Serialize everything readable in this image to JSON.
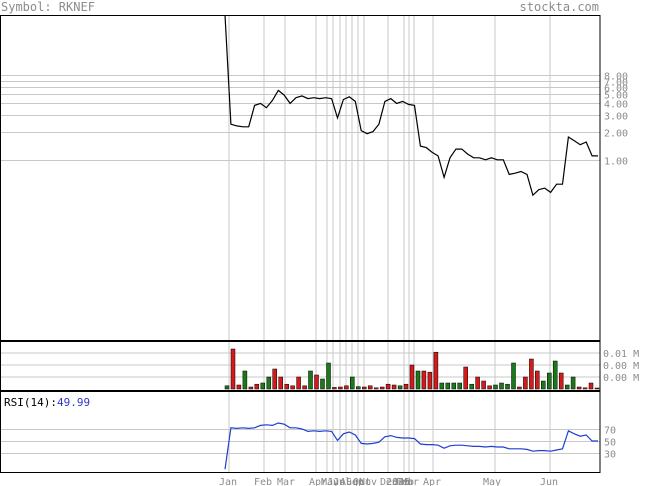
{
  "header": {
    "symbol_label": "Symbol: RKNEF",
    "site": "stockta.com"
  },
  "colors": {
    "label": "#8c8c8c",
    "grid": "#c8c8c8",
    "frame": "#000000",
    "price_line": "#000000",
    "rsi_line": "#1f3fd0",
    "rsi_value": "#2b36c9",
    "volume_up": "#1a7a1a",
    "volume_down": "#d41a1a"
  },
  "chart_data": [
    {
      "type": "line",
      "panel": "price",
      "scale": "log",
      "yticks": [
        8.0,
        7.0,
        6.0,
        5.0,
        4.0,
        3.0,
        2.0,
        1.0
      ],
      "ytick_labels": [
        "8.00",
        "7.00",
        "6.00",
        "5.00",
        "4.00",
        "3.00",
        "2.00",
        "1.00"
      ],
      "series": [
        {
          "values": [
            60,
            2.4,
            2.3,
            2.25,
            2.25,
            3.8,
            4.0,
            3.6,
            4.3,
            5.5,
            4.9,
            4.0,
            4.6,
            4.8,
            4.5,
            4.6,
            4.5,
            4.6,
            4.5,
            2.8,
            4.4,
            4.7,
            4.2,
            2.05,
            1.9,
            2.0,
            2.4,
            4.2,
            4.5,
            4.0,
            4.2,
            3.9,
            3.8,
            1.4,
            1.35,
            1.2,
            1.1,
            0.65,
            1.05,
            1.3,
            1.3,
            1.15,
            1.05,
            1.05,
            1.0,
            1.05,
            1.0,
            1.0,
            0.7,
            0.72,
            0.75,
            0.7,
            0.42,
            0.48,
            0.5,
            0.45,
            0.55,
            0.55,
            1.75,
            1.6,
            1.45,
            1.55,
            1.1,
            1.1
          ]
        }
      ]
    },
    {
      "type": "bar",
      "panel": "volume",
      "ytick_labels": [
        "0.01 M",
        "0.00 M",
        "0.00 M"
      ],
      "bars": [
        {
          "v": 0.08,
          "c": "up"
        },
        {
          "v": 1.0,
          "c": "down"
        },
        {
          "v": 0.1,
          "c": "down"
        },
        {
          "v": 0.45,
          "c": "up"
        },
        {
          "v": 0.05,
          "c": "down"
        },
        {
          "v": 0.12,
          "c": "down"
        },
        {
          "v": 0.15,
          "c": "up"
        },
        {
          "v": 0.3,
          "c": "up"
        },
        {
          "v": 0.5,
          "c": "down"
        },
        {
          "v": 0.3,
          "c": "down"
        },
        {
          "v": 0.12,
          "c": "down"
        },
        {
          "v": 0.08,
          "c": "down"
        },
        {
          "v": 0.3,
          "c": "down"
        },
        {
          "v": 0.08,
          "c": "down"
        },
        {
          "v": 0.45,
          "c": "up"
        },
        {
          "v": 0.35,
          "c": "down"
        },
        {
          "v": 0.25,
          "c": "up"
        },
        {
          "v": 0.65,
          "c": "up"
        },
        {
          "v": 0.04,
          "c": "down"
        },
        {
          "v": 0.05,
          "c": "down"
        },
        {
          "v": 0.08,
          "c": "down"
        },
        {
          "v": 0.3,
          "c": "up"
        },
        {
          "v": 0.06,
          "c": "up"
        },
        {
          "v": 0.05,
          "c": "down"
        },
        {
          "v": 0.08,
          "c": "down"
        },
        {
          "v": 0.03,
          "c": "down"
        },
        {
          "v": 0.05,
          "c": "down"
        },
        {
          "v": 0.12,
          "c": "down"
        },
        {
          "v": 0.1,
          "c": "down"
        },
        {
          "v": 0.08,
          "c": "up"
        },
        {
          "v": 0.12,
          "c": "down"
        },
        {
          "v": 0.6,
          "c": "down"
        },
        {
          "v": 0.45,
          "c": "up"
        },
        {
          "v": 0.45,
          "c": "down"
        },
        {
          "v": 0.42,
          "c": "down"
        },
        {
          "v": 0.92,
          "c": "down"
        },
        {
          "v": 0.15,
          "c": "up"
        },
        {
          "v": 0.15,
          "c": "up"
        },
        {
          "v": 0.15,
          "c": "up"
        },
        {
          "v": 0.15,
          "c": "up"
        },
        {
          "v": 0.55,
          "c": "down"
        },
        {
          "v": 0.12,
          "c": "up"
        },
        {
          "v": 0.3,
          "c": "down"
        },
        {
          "v": 0.2,
          "c": "down"
        },
        {
          "v": 0.08,
          "c": "down"
        },
        {
          "v": 0.1,
          "c": "up"
        },
        {
          "v": 0.15,
          "c": "up"
        },
        {
          "v": 0.12,
          "c": "up"
        },
        {
          "v": 0.65,
          "c": "up"
        },
        {
          "v": 0.05,
          "c": "down"
        },
        {
          "v": 0.3,
          "c": "down"
        },
        {
          "v": 0.75,
          "c": "down"
        },
        {
          "v": 0.45,
          "c": "down"
        },
        {
          "v": 0.2,
          "c": "up"
        },
        {
          "v": 0.4,
          "c": "up"
        },
        {
          "v": 0.7,
          "c": "up"
        },
        {
          "v": 0.4,
          "c": "down"
        },
        {
          "v": 0.1,
          "c": "up"
        },
        {
          "v": 0.3,
          "c": "up"
        },
        {
          "v": 0.05,
          "c": "down"
        },
        {
          "v": 0.03,
          "c": "down"
        },
        {
          "v": 0.15,
          "c": "down"
        },
        {
          "v": 0.02,
          "c": "down"
        }
      ]
    },
    {
      "type": "line",
      "panel": "rsi",
      "label": "RSI(14):",
      "current_value": "49.99",
      "yticks": [
        70,
        50,
        30
      ],
      "ylim": [
        0,
        100
      ],
      "series": [
        {
          "values": [
            3,
            72,
            71,
            72,
            71,
            72,
            76,
            77,
            76,
            80,
            78,
            72,
            72,
            70,
            66,
            67,
            66,
            67,
            66,
            51,
            62,
            65,
            60,
            46,
            45,
            46,
            48,
            57,
            59,
            56,
            55,
            55,
            54,
            45,
            44,
            44,
            43,
            38,
            42,
            43,
            43,
            42,
            41,
            41,
            40,
            41,
            40,
            40,
            37,
            37,
            37,
            36,
            33,
            34,
            34,
            33,
            35,
            37,
            67,
            62,
            58,
            60,
            50,
            50
          ]
        }
      ]
    }
  ],
  "x_axis": {
    "tick_labels": [
      "Jan",
      "Feb",
      "Mar",
      "Apr",
      "May",
      "Jun",
      "Jul",
      "Aug",
      "Sep",
      "Oct",
      "Nov",
      "Dec",
      "Jan",
      "2025",
      "Feb",
      "Mar",
      "Apr",
      "May",
      "Jun"
    ]
  }
}
